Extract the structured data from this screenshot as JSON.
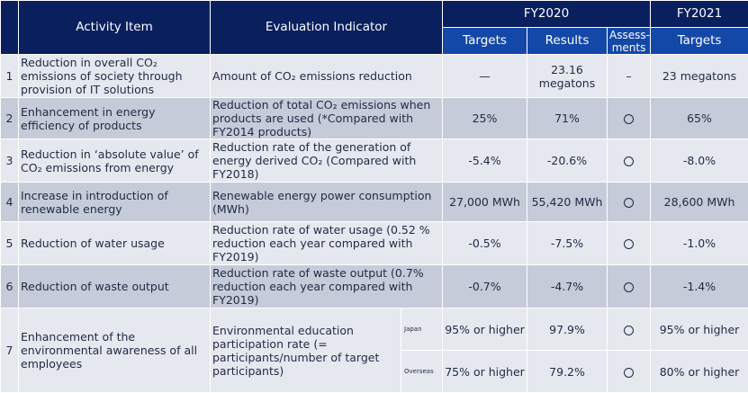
{
  "header": {
    "activity_item": "Activity Item",
    "evaluation_indicator": "Evaluation Indicator",
    "fy2020": "FY2020",
    "fy2021": "FY2021",
    "targets": "Targets",
    "results": "Results",
    "assessments": "Assess-\nments",
    "targets_2021": "Targets"
  },
  "rows": [
    {
      "no": "1",
      "activity": "Reduction in overall CO₂ emissions of society through provision of IT solutions",
      "indicator": "Amount of CO₂ emissions reduction",
      "target": "—",
      "result": "23.16\nmegatons",
      "assessment": "–",
      "target_2021": "23 megatons"
    },
    {
      "no": "2",
      "activity": "Enhancement in energy efficiency of products",
      "indicator": "Reduction of total CO₂ emissions when products are used (*Compared with FY2014 products)",
      "target": "25%",
      "result": "71%",
      "assessment": "circle",
      "target_2021": "65%"
    },
    {
      "no": "3",
      "activity": "Reduction in ‘absolute value’ of CO₂ emissions from energy",
      "indicator": "Reduction rate of the generation of energy derived CO₂ (Compared with FY2018)",
      "target": "-5.4%",
      "result": "-20.6%",
      "assessment": "circle",
      "target_2021": "-8.0%"
    },
    {
      "no": "4",
      "activity": "Increase in introduction of renewable energy",
      "indicator": "Renewable energy power consumption (MWh)",
      "target": "27,000 MWh",
      "result": "55,420 MWh",
      "assessment": "circle",
      "target_2021": "28,600 MWh"
    },
    {
      "no": "5",
      "activity": "Reduction of water usage",
      "indicator": "Reduction rate of water usage (0.52 % reduction each year compared with FY2019)",
      "target": "-0.5%",
      "result": "-7.5%",
      "assessment": "circle",
      "target_2021": "-1.0%"
    },
    {
      "no": "6",
      "activity": "Reduction of waste output",
      "indicator": "Reduction rate of waste output (0.7% reduction each year compared with FY2019)",
      "target": "-0.7%",
      "result": "-4.7%",
      "assessment": "circle",
      "target_2021": "-1.4%"
    },
    {
      "no": "7",
      "activity": "Enhancement of the environmental awareness of all employees",
      "indicator": "Environmental education participation rate (= participants/number of target participants)",
      "japan": {
        "label": "Japan",
        "target": "95% or higher",
        "result": "97.9%",
        "assessment": "circle",
        "target_2021": "95% or higher"
      },
      "overseas": {
        "label": "Overseas",
        "target": "75% or higher",
        "result": "79.2%",
        "assessment": "circle",
        "target_2021": "80% or higher"
      }
    }
  ],
  "colors": {
    "header_dark": "#0a1f5e",
    "header_blue": "#1448a8",
    "row_light": "#e6e8ef",
    "row_dark": "#c6cbd9"
  }
}
